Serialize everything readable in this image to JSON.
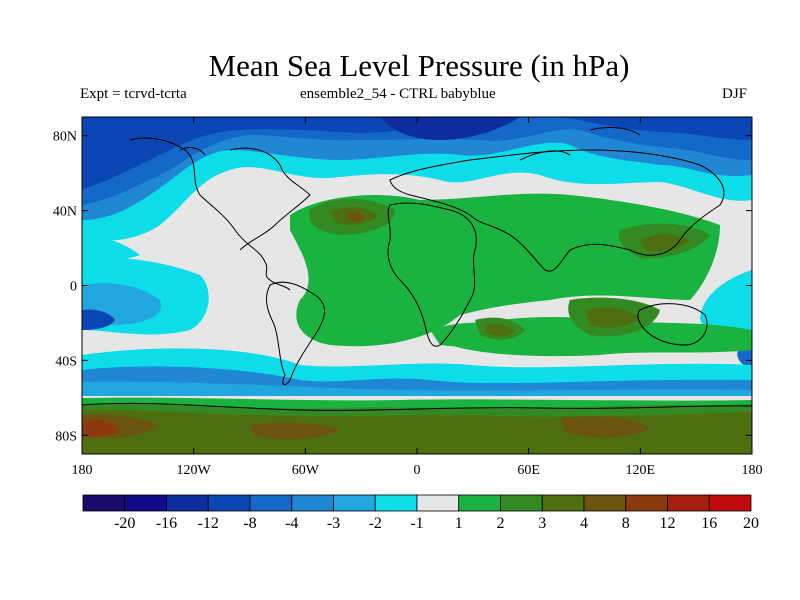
{
  "title": "Mean Sea Level Pressure (in hPa)",
  "left_subtitle": "Expt = tcrvd-tcrta",
  "center_subtitle": "ensemble2_54 - CTRL babyblue",
  "right_subtitle": "DJF",
  "map": {
    "projection": "cylindrical-equidistant",
    "lon_range": [
      -180,
      180
    ],
    "lat_range": [
      -90,
      90
    ],
    "x_ticks": [
      {
        "lon": -180,
        "label": "180"
      },
      {
        "lon": -120,
        "label": "120W"
      },
      {
        "lon": -60,
        "label": "60W"
      },
      {
        "lon": 0,
        "label": "0"
      },
      {
        "lon": 60,
        "label": "60E"
      },
      {
        "lon": 120,
        "label": "120E"
      },
      {
        "lon": 180,
        "label": "180"
      }
    ],
    "y_ticks": [
      {
        "lat": 80,
        "label": "80N"
      },
      {
        "lat": 40,
        "label": "40N"
      },
      {
        "lat": 0,
        "label": "0"
      },
      {
        "lat": -40,
        "label": "40S"
      },
      {
        "lat": -80,
        "label": "80S"
      }
    ]
  },
  "colorbar": {
    "colors": [
      "#1a0b6e",
      "#130a8a",
      "#0c2e9e",
      "#0a47b4",
      "#1469c8",
      "#1f87d4",
      "#22a6e0",
      "#0ddde8",
      "#e6e6e6",
      "#1ab33f",
      "#348a22",
      "#4e6f10",
      "#6c560f",
      "#8a3a0c",
      "#a81f0d",
      "#c00a0a"
    ],
    "labels": [
      "-20",
      "-16",
      "-12",
      "-8",
      "-4",
      "-3",
      "-2",
      "-1",
      "1",
      "2",
      "3",
      "4",
      "8",
      "12",
      "16",
      "20"
    ]
  }
}
